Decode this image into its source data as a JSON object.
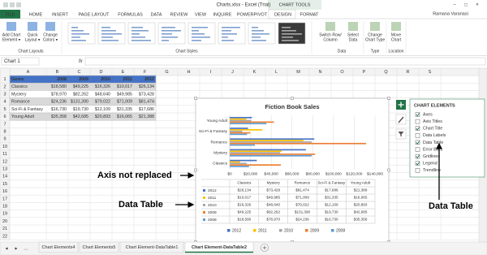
{
  "window": {
    "title": "Charts.xlsx - Excel (Trial)",
    "context": "CHART TOOLS",
    "user": "Ramana Varanasi"
  },
  "ribbon": {
    "tabs": [
      {
        "label": "FILE",
        "style": "file"
      },
      {
        "label": "HOME"
      },
      {
        "label": "INSERT"
      },
      {
        "label": "PAGE LAYOUT"
      },
      {
        "label": "FORMULAS"
      },
      {
        "label": "DATA"
      },
      {
        "label": "REVIEW"
      },
      {
        "label": "VIEW"
      },
      {
        "label": "INQUIRE"
      },
      {
        "label": "POWERPIVOT"
      },
      {
        "label": "DESIGN",
        "style": "active"
      },
      {
        "label": "FORMAT",
        "style": "context"
      }
    ],
    "buttons": [
      {
        "lines": [
          "Add Chart",
          "Element ▾"
        ]
      },
      {
        "lines": [
          "Quick",
          "Layout ▾"
        ]
      },
      {
        "lines": [
          "Change",
          "Colors ▾"
        ]
      },
      {
        "lines": [
          "Switch Row/",
          "Column"
        ]
      },
      {
        "lines": [
          "Select",
          "Data"
        ]
      },
      {
        "lines": [
          "Change",
          "Chart Type"
        ]
      },
      {
        "lines": [
          "Move",
          "Chart"
        ]
      }
    ],
    "groups": [
      "Chart Layouts",
      "Chart Styles",
      "Data",
      "Type",
      "Location"
    ]
  },
  "formula_bar": {
    "name_box": "Chart 1",
    "fx": "fx"
  },
  "sheet": {
    "columns": [
      "A",
      "B",
      "C",
      "D",
      "E",
      "F",
      "G",
      "H",
      "I",
      "J",
      "K",
      "L",
      "M",
      "N",
      "O",
      "P",
      "Q",
      "R",
      "S"
    ],
    "row_numbers": [
      1,
      2,
      3,
      4,
      5,
      6,
      7,
      8,
      9,
      10,
      11,
      12,
      13,
      14,
      15,
      16,
      17,
      18,
      19,
      20,
      21,
      22
    ],
    "rows": [
      [
        "Genre",
        "2008",
        "2009",
        "2010",
        "2011",
        "2012"
      ],
      [
        "Classics",
        "$18,580",
        "$49,225",
        "$16,326",
        "$10,017",
        "$26,134"
      ],
      [
        "Mystery",
        "$78,970",
        "$82,262",
        "$48,640",
        "$49,985",
        "$73,428"
      ],
      [
        "Romance",
        "$24,236",
        "$131,390",
        "$79,022",
        "$71,009",
        "$81,474"
      ],
      [
        "Sci-Fi & Fantasy",
        "$16,730",
        "$19,730",
        "$12,109",
        "$31,335",
        "$17,686"
      ],
      [
        "Young Adult",
        "$35,358",
        "$42,685",
        "$20,893",
        "$16,065",
        "$21,388"
      ]
    ]
  },
  "chart_data": {
    "type": "bar",
    "orientation": "horizontal",
    "title": "Fiction Book Sales",
    "categories": [
      "Classics",
      "Mystery",
      "Romance",
      "Sci-Fi & Fantasy",
      "Young Adult"
    ],
    "series": [
      {
        "name": "2012",
        "color": "#4472c4",
        "values": [
          26134,
          73428,
          81474,
          17686,
          21388
        ],
        "value_labels": [
          "$26,134",
          "$73,428",
          "$81,474",
          "$17,686",
          "$21,388"
        ]
      },
      {
        "name": "2011",
        "color": "#ffc000",
        "values": [
          10017,
          49985,
          71009,
          31335,
          16065
        ],
        "value_labels": [
          "$10,017",
          "$49,985",
          "$71,009",
          "$31,335",
          "$16,065"
        ]
      },
      {
        "name": "2010",
        "color": "#a5a5a5",
        "values": [
          16326,
          48640,
          79022,
          12109,
          20893
        ],
        "value_labels": [
          "$16,326",
          "$48,640",
          "$79,022",
          "$12,109",
          "$20,893"
        ]
      },
      {
        "name": "2009",
        "color": "#ed7d31",
        "values": [
          49225,
          82262,
          131390,
          19730,
          42685
        ],
        "value_labels": [
          "$49,225",
          "$82,262",
          "$131,390",
          "$19,730",
          "$42,685"
        ]
      },
      {
        "name": "2008",
        "color": "#5b9bd5",
        "values": [
          18580,
          78970,
          24236,
          16730,
          35358
        ],
        "value_labels": [
          "$18,580",
          "$78,970",
          "$24,236",
          "$16,730",
          "$35,358"
        ]
      }
    ],
    "xlim": [
      0,
      140000
    ],
    "xticks": [
      {
        "value": 0,
        "label": "$0"
      },
      {
        "value": 20000,
        "label": "$20,000"
      },
      {
        "value": 40000,
        "label": "$40,000"
      },
      {
        "value": 60000,
        "label": "$60,000"
      },
      {
        "value": 80000,
        "label": "$80,000"
      },
      {
        "value": 100000,
        "label": "$100,000"
      },
      {
        "value": 120000,
        "label": "$120,000"
      },
      {
        "value": 140000,
        "label": "$140,000"
      }
    ],
    "data_table": true,
    "legend": "bottom"
  },
  "chart_elements": {
    "title": "CHART ELEMENTS",
    "items": [
      {
        "label": "Axes",
        "checked": true
      },
      {
        "label": "Axis Titles",
        "checked": false
      },
      {
        "label": "Chart Title",
        "checked": true
      },
      {
        "label": "Data Labels",
        "checked": false
      },
      {
        "label": "Data Table",
        "checked": true
      },
      {
        "label": "Error Bars",
        "checked": false
      },
      {
        "label": "Gridlines",
        "checked": true
      },
      {
        "label": "Legend",
        "checked": true
      },
      {
        "label": "Trendline",
        "checked": false
      }
    ]
  },
  "annotations": [
    "Axis not replaced",
    "Data Table",
    "Data Table"
  ],
  "sheet_tabs": [
    {
      "label": "Chart Elements4"
    },
    {
      "label": "Chart Elements5"
    },
    {
      "label": "Chart Element-DataTable1"
    },
    {
      "label": "Chart Element-DataTable2",
      "active": true
    }
  ]
}
